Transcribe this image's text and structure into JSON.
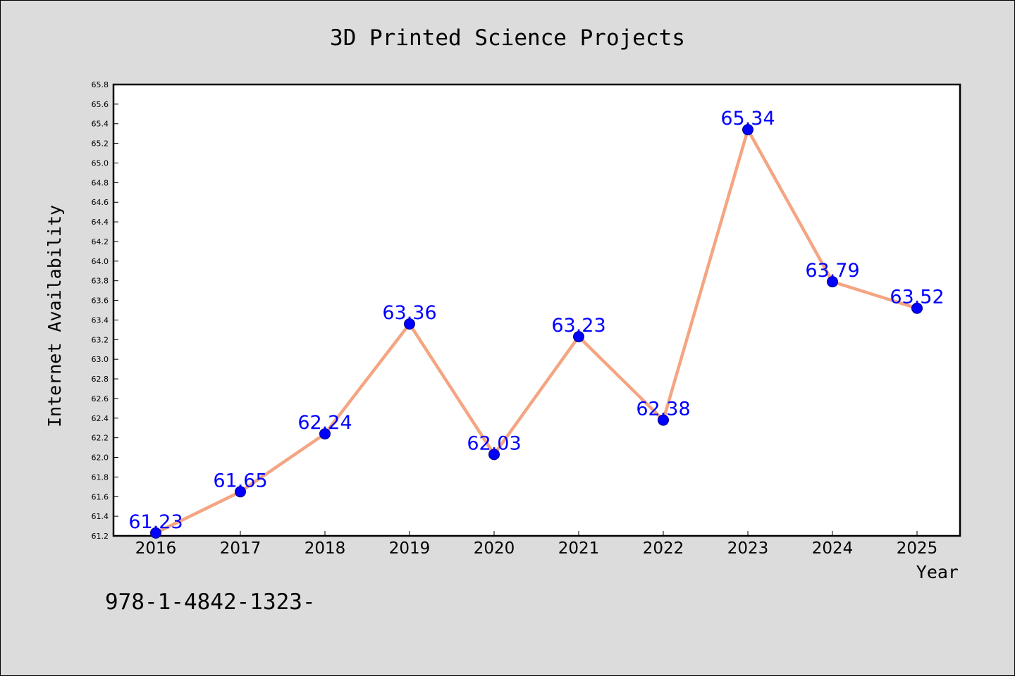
{
  "chart_data": {
    "type": "line",
    "title": "3D Printed Science Projects",
    "xlabel": "Year",
    "ylabel": "Internet Availability",
    "categories": [
      "2016",
      "2017",
      "2018",
      "2019",
      "2020",
      "2021",
      "2022",
      "2023",
      "2024",
      "2025"
    ],
    "series": [
      {
        "values": [
          61.23,
          61.65,
          62.24,
          63.36,
          62.03,
          63.23,
          62.38,
          65.34,
          63.79,
          63.52
        ]
      }
    ],
    "data_labels": [
      "61.23",
      "61.65",
      "62.24",
      "63.36",
      "62.03",
      "63.23",
      "62.38",
      "65.34",
      "63.79",
      "63.52"
    ],
    "ylim": [
      61.2,
      65.8
    ],
    "yticks": [
      "61.2",
      "61.4",
      "61.6",
      "61.8",
      "62.0",
      "62.2",
      "62.4",
      "62.6",
      "62.8",
      "63.0",
      "63.2",
      "63.4",
      "63.6",
      "63.8",
      "64.0",
      "64.2",
      "64.4",
      "64.6",
      "64.8",
      "65.0",
      "65.2",
      "65.4",
      "65.6",
      "65.8"
    ],
    "grid": false,
    "legend": "none",
    "colors": {
      "line": "#f4a582",
      "marker": "#0000ff",
      "data_label": "#0000ff",
      "figure_background": "#dcdcdc",
      "plot_background": "#ffffff"
    }
  },
  "footer": {
    "text": "978-1-4842-1323-"
  }
}
